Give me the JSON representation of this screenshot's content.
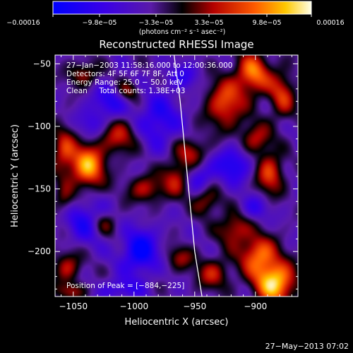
{
  "chart_data": {
    "type": "heatmap",
    "title": "Reconstructed RHESSI Image",
    "xlabel": "Heliocentric X (arcsec)",
    "ylabel": "Heliocentric Y (arcsec)",
    "xlim": [
      -1065,
      -865
    ],
    "ylim": [
      -236,
      -43
    ],
    "x_ticks": [
      {
        "value": -1050,
        "label": "−1050"
      },
      {
        "value": -1000,
        "label": "−1000"
      },
      {
        "value": -950,
        "label": "−950"
      },
      {
        "value": -900,
        "label": "−900"
      }
    ],
    "y_ticks": [
      {
        "value": -50,
        "label": "−50"
      },
      {
        "value": -100,
        "label": "−100"
      },
      {
        "value": -150,
        "label": "−150"
      },
      {
        "value": -200,
        "label": "−200"
      }
    ],
    "colorbar": {
      "units": "(photons cm⁻² s⁻¹ asec⁻²)",
      "range": [
        -0.00016,
        0.00016
      ],
      "tick_labels": [
        "−0.00016",
        "−9.8e−05",
        "−3.3e−05",
        "3.3e−05",
        "9.8e−05",
        "0.00016"
      ]
    },
    "annotations": [
      "27−Jan−2003 11:58:16.000 to 12:00:36.000",
      "Detectors: 4F 5F 6F 7F 8F, Att 0",
      "Energy Range: 25.0 − 50.0 keV",
      "Clean     Total counts: 1.38E+03",
      "Position of Peak = [−884,−225]"
    ],
    "peak": {
      "x": -884,
      "y": -225
    },
    "limb_curve": [
      [
        -967,
        -43
      ],
      [
        -962,
        -80
      ],
      [
        -958,
        -120
      ],
      [
        -954,
        -160
      ],
      [
        -950,
        -200
      ],
      [
        -944,
        -236
      ]
    ],
    "sources": [
      {
        "x": -1038,
        "y": -132,
        "amp": 1.0,
        "sx": 10,
        "sy": 13
      },
      {
        "x": -1012,
        "y": -108,
        "amp": 0.55,
        "sx": 11,
        "sy": 10
      },
      {
        "x": -1058,
        "y": -120,
        "amp": 0.6,
        "sx": 7,
        "sy": 14
      },
      {
        "x": -1042,
        "y": -58,
        "amp": 0.5,
        "sx": 9,
        "sy": 7
      },
      {
        "x": -1005,
        "y": -72,
        "amp": 0.45,
        "sx": 7,
        "sy": 6
      },
      {
        "x": -990,
        "y": -150,
        "amp": 0.55,
        "sx": 11,
        "sy": 8
      },
      {
        "x": -965,
        "y": -140,
        "amp": 0.55,
        "sx": 8,
        "sy": 11
      },
      {
        "x": -952,
        "y": -120,
        "amp": 0.5,
        "sx": 9,
        "sy": 8
      },
      {
        "x": -925,
        "y": -82,
        "amp": 0.75,
        "sx": 11,
        "sy": 14
      },
      {
        "x": -902,
        "y": -58,
        "amp": 0.85,
        "sx": 10,
        "sy": 12
      },
      {
        "x": -878,
        "y": -75,
        "amp": 0.6,
        "sx": 8,
        "sy": 14
      },
      {
        "x": -900,
        "y": -110,
        "amp": 0.55,
        "sx": 9,
        "sy": 9
      },
      {
        "x": -888,
        "y": -138,
        "amp": 0.7,
        "sx": 8,
        "sy": 12
      },
      {
        "x": -940,
        "y": -160,
        "amp": 0.5,
        "sx": 8,
        "sy": 8
      },
      {
        "x": -918,
        "y": -182,
        "amp": 0.6,
        "sx": 9,
        "sy": 9
      },
      {
        "x": -898,
        "y": -202,
        "amp": 0.8,
        "sx": 11,
        "sy": 11
      },
      {
        "x": -884,
        "y": -225,
        "amp": 1.15,
        "sx": 12,
        "sy": 12
      },
      {
        "x": -935,
        "y": -218,
        "amp": 0.55,
        "sx": 10,
        "sy": 9
      },
      {
        "x": -962,
        "y": -205,
        "amp": 0.45,
        "sx": 8,
        "sy": 7
      },
      {
        "x": -1055,
        "y": -212,
        "amp": 0.55,
        "sx": 8,
        "sy": 9
      },
      {
        "x": -1052,
        "y": -232,
        "amp": 0.45,
        "sx": 9,
        "sy": 5
      },
      {
        "x": -1025,
        "y": -178,
        "amp": 0.4,
        "sx": 8,
        "sy": 7
      },
      {
        "x": -1058,
        "y": -160,
        "amp": 0.4,
        "sx": 6,
        "sy": 8
      },
      {
        "x": -995,
        "y": -200,
        "amp": -0.75,
        "sx": 10,
        "sy": 12
      },
      {
        "x": -1020,
        "y": -80,
        "amp": -0.45,
        "sx": 10,
        "sy": 9
      },
      {
        "x": -980,
        "y": -95,
        "amp": -0.5,
        "sx": 12,
        "sy": 14
      },
      {
        "x": -945,
        "y": -140,
        "amp": -0.4,
        "sx": 8,
        "sy": 8
      },
      {
        "x": -918,
        "y": -130,
        "amp": -0.55,
        "sx": 10,
        "sy": 10
      },
      {
        "x": -1040,
        "y": -175,
        "amp": -0.5,
        "sx": 11,
        "sy": 12
      },
      {
        "x": -1035,
        "y": -98,
        "amp": -0.35,
        "sx": 8,
        "sy": 8
      },
      {
        "x": -960,
        "y": -60,
        "amp": -0.35,
        "sx": 9,
        "sy": 7
      },
      {
        "x": -900,
        "y": -165,
        "amp": -0.35,
        "sx": 8,
        "sy": 7
      },
      {
        "x": -1010,
        "y": -230,
        "amp": -0.4,
        "sx": 11,
        "sy": 6
      }
    ]
  },
  "footer": {
    "timestamp": "27−May−2013 07:02"
  }
}
